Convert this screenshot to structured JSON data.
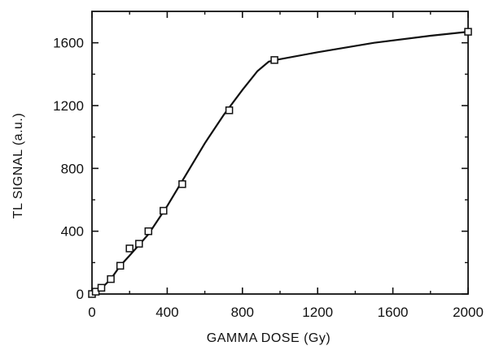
{
  "chart_data": {
    "type": "line",
    "title": "",
    "xlabel": "GAMMA DOSE (Gy)",
    "ylabel": "TL SIGNAL (a.u.)",
    "xlim": [
      0,
      2000
    ],
    "ylim": [
      0,
      1800
    ],
    "xticks": [
      0,
      400,
      800,
      1200,
      1600,
      2000
    ],
    "yticks": [
      0,
      400,
      800,
      1200,
      1600
    ],
    "x_tick_labels": [
      "0",
      "400",
      "800",
      "1200",
      "1600",
      "2000"
    ],
    "y_tick_labels": [
      "0",
      "400",
      "800",
      "1200",
      "1600"
    ],
    "grid": false,
    "legend": "none",
    "marker": "open-square",
    "series": [
      {
        "x": [
          0,
          20,
          50,
          100,
          150,
          200,
          250,
          300,
          380,
          480,
          730,
          970,
          2000
        ],
        "y": [
          0,
          15,
          40,
          95,
          180,
          290,
          320,
          400,
          530,
          700,
          1170,
          1490,
          1670
        ]
      }
    ],
    "curve": {
      "x": [
        0,
        50,
        100,
        150,
        200,
        300,
        400,
        500,
        600,
        700,
        800,
        880,
        940,
        975,
        1200,
        1500,
        1800,
        2000
      ],
      "y": [
        0,
        35,
        95,
        180,
        245,
        380,
        560,
        760,
        960,
        1140,
        1300,
        1420,
        1480,
        1490,
        1540,
        1600,
        1645,
        1670
      ]
    },
    "colors": {
      "line": "#111111",
      "marker_fill": "#ffffff"
    }
  }
}
